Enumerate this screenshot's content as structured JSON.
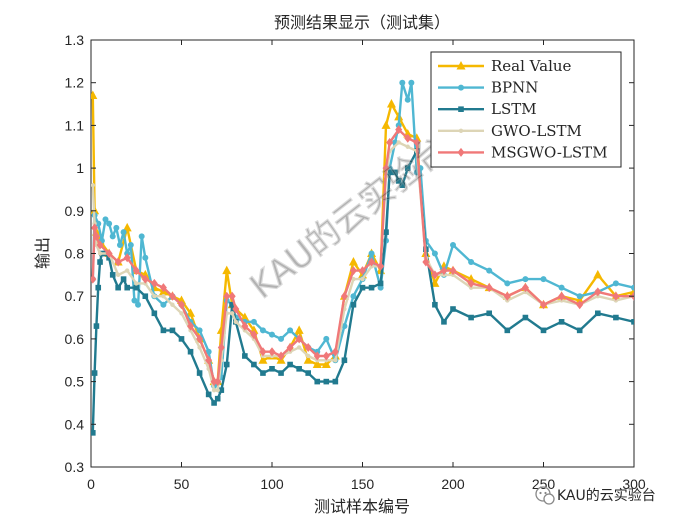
{
  "chart_data": {
    "type": "line",
    "title": "预测结果显示（测试集）",
    "xlabel": "测试样本编号",
    "ylabel": "输出",
    "xlim": [
      0,
      300
    ],
    "ylim": [
      0.3,
      1.3
    ],
    "xticks": [
      0,
      50,
      100,
      150,
      200,
      250,
      300
    ],
    "yticks": [
      0.3,
      0.4,
      0.5,
      0.6,
      0.7,
      0.8,
      0.9,
      1.0,
      1.1,
      1.2,
      1.3
    ],
    "xtick_labels": [
      "0",
      "50",
      "100",
      "150",
      "200",
      "250",
      "300"
    ],
    "ytick_labels": [
      "0.3",
      "0.4",
      "0.5",
      "0.6",
      "0.7",
      "0.8",
      "0.9",
      "1",
      "1.1",
      "1.2",
      "1.3"
    ],
    "grid": false,
    "legend_position": "top-right",
    "series": [
      {
        "name": "Real Value",
        "color": "#f5b800",
        "marker": "triangle",
        "x": [
          1,
          2,
          3,
          5,
          10,
          15,
          20,
          25,
          30,
          35,
          40,
          45,
          50,
          55,
          60,
          65,
          68,
          70,
          72,
          75,
          78,
          80,
          85,
          90,
          95,
          100,
          105,
          110,
          115,
          120,
          125,
          130,
          135,
          140,
          145,
          150,
          155,
          160,
          163,
          166,
          170,
          175,
          180,
          185,
          190,
          195,
          200,
          210,
          220,
          230,
          240,
          250,
          260,
          270,
          280,
          290,
          300
        ],
        "y": [
          1.17,
          0.9,
          0.85,
          0.83,
          0.8,
          0.78,
          0.86,
          0.76,
          0.75,
          0.72,
          0.71,
          0.7,
          0.69,
          0.66,
          0.6,
          0.55,
          0.5,
          0.5,
          0.62,
          0.76,
          0.68,
          0.67,
          0.65,
          0.62,
          0.55,
          0.56,
          0.55,
          0.58,
          0.62,
          0.55,
          0.54,
          0.54,
          0.56,
          0.7,
          0.78,
          0.75,
          0.8,
          0.76,
          1.1,
          1.15,
          1.12,
          1.08,
          1.07,
          0.8,
          0.73,
          0.77,
          0.76,
          0.74,
          0.72,
          0.7,
          0.72,
          0.68,
          0.7,
          0.69,
          0.75,
          0.7,
          0.71
        ]
      },
      {
        "name": "BPNN",
        "color": "#4fb7d2",
        "marker": "circle",
        "x": [
          1,
          2,
          4,
          6,
          8,
          10,
          12,
          14,
          16,
          18,
          20,
          22,
          24,
          26,
          28,
          30,
          35,
          40,
          45,
          50,
          55,
          60,
          65,
          68,
          70,
          72,
          75,
          78,
          80,
          85,
          90,
          95,
          100,
          105,
          110,
          115,
          120,
          125,
          130,
          135,
          140,
          145,
          150,
          155,
          160,
          163,
          165,
          168,
          170,
          172,
          175,
          177,
          180,
          182,
          185,
          190,
          195,
          200,
          210,
          220,
          230,
          240,
          250,
          260,
          270,
          280,
          290,
          300
        ],
        "y": [
          0.74,
          0.89,
          0.87,
          0.83,
          0.88,
          0.87,
          0.84,
          0.86,
          0.82,
          0.85,
          0.8,
          0.82,
          0.69,
          0.68,
          0.84,
          0.79,
          0.7,
          0.68,
          0.7,
          0.68,
          0.64,
          0.62,
          0.57,
          0.49,
          0.5,
          0.51,
          0.69,
          0.68,
          0.65,
          0.64,
          0.64,
          0.62,
          0.61,
          0.6,
          0.62,
          0.6,
          0.58,
          0.57,
          0.6,
          0.55,
          0.63,
          0.7,
          0.74,
          0.8,
          0.72,
          0.83,
          1.0,
          1.06,
          1.1,
          1.2,
          1.16,
          1.2,
          0.99,
          1.0,
          0.83,
          0.8,
          0.75,
          0.82,
          0.78,
          0.76,
          0.73,
          0.74,
          0.74,
          0.72,
          0.7,
          0.71,
          0.73,
          0.72
        ]
      },
      {
        "name": "LSTM",
        "color": "#217a8f",
        "marker": "square",
        "x": [
          1,
          2,
          3,
          4,
          5,
          6,
          8,
          10,
          12,
          15,
          18,
          20,
          25,
          30,
          35,
          40,
          45,
          50,
          55,
          60,
          65,
          68,
          70,
          72,
          75,
          78,
          80,
          85,
          90,
          95,
          100,
          105,
          110,
          115,
          120,
          125,
          130,
          135,
          140,
          145,
          150,
          155,
          160,
          163,
          165,
          168,
          170,
          172,
          175,
          180,
          185,
          190,
          195,
          200,
          210,
          220,
          230,
          240,
          250,
          260,
          270,
          280,
          290,
          300
        ],
        "y": [
          0.38,
          0.52,
          0.63,
          0.72,
          0.78,
          0.8,
          0.8,
          0.79,
          0.75,
          0.72,
          0.74,
          0.72,
          0.72,
          0.7,
          0.66,
          0.62,
          0.62,
          0.6,
          0.57,
          0.52,
          0.47,
          0.45,
          0.46,
          0.48,
          0.54,
          0.68,
          0.64,
          0.56,
          0.54,
          0.52,
          0.53,
          0.52,
          0.54,
          0.53,
          0.52,
          0.5,
          0.5,
          0.5,
          0.55,
          0.68,
          0.72,
          0.72,
          0.73,
          0.85,
          0.99,
          0.99,
          0.97,
          0.96,
          1.0,
          1.04,
          0.81,
          0.68,
          0.64,
          0.67,
          0.65,
          0.66,
          0.62,
          0.65,
          0.62,
          0.64,
          0.62,
          0.66,
          0.65,
          0.64
        ]
      },
      {
        "name": "GWO-LSTM",
        "color": "#ddd5b6",
        "marker": "circle-small",
        "x": [
          1,
          2,
          3,
          5,
          10,
          15,
          20,
          25,
          30,
          35,
          40,
          45,
          50,
          55,
          60,
          65,
          68,
          70,
          72,
          75,
          78,
          80,
          85,
          90,
          95,
          100,
          105,
          110,
          115,
          120,
          125,
          130,
          135,
          140,
          145,
          150,
          155,
          160,
          163,
          165,
          170,
          175,
          180,
          185,
          190,
          195,
          200,
          210,
          220,
          230,
          240,
          250,
          260,
          270,
          280,
          290,
          300
        ],
        "y": [
          0.96,
          0.87,
          0.82,
          0.8,
          0.8,
          0.75,
          0.76,
          0.73,
          0.73,
          0.7,
          0.7,
          0.68,
          0.66,
          0.62,
          0.58,
          0.53,
          0.48,
          0.48,
          0.55,
          0.66,
          0.66,
          0.64,
          0.62,
          0.6,
          0.56,
          0.56,
          0.56,
          0.57,
          0.58,
          0.56,
          0.55,
          0.55,
          0.55,
          0.67,
          0.74,
          0.74,
          0.77,
          0.77,
          0.98,
          1.04,
          1.06,
          1.05,
          1.04,
          0.79,
          0.75,
          0.75,
          0.75,
          0.72,
          0.72,
          0.69,
          0.71,
          0.68,
          0.69,
          0.68,
          0.7,
          0.69,
          0.7
        ]
      },
      {
        "name": "MSGWO-LSTM",
        "color": "#f07878",
        "marker": "diamond",
        "x": [
          1,
          2,
          3,
          5,
          10,
          15,
          20,
          25,
          30,
          35,
          40,
          45,
          50,
          55,
          60,
          65,
          68,
          70,
          72,
          75,
          78,
          80,
          85,
          90,
          95,
          100,
          105,
          110,
          115,
          120,
          125,
          130,
          135,
          140,
          145,
          150,
          155,
          160,
          163,
          165,
          170,
          175,
          180,
          185,
          190,
          195,
          200,
          210,
          220,
          230,
          240,
          250,
          260,
          270,
          280,
          290,
          300
        ],
        "y": [
          0.74,
          0.86,
          0.84,
          0.82,
          0.8,
          0.78,
          0.79,
          0.76,
          0.74,
          0.73,
          0.72,
          0.7,
          0.68,
          0.63,
          0.6,
          0.55,
          0.5,
          0.5,
          0.58,
          0.7,
          0.7,
          0.67,
          0.63,
          0.61,
          0.57,
          0.57,
          0.56,
          0.58,
          0.6,
          0.58,
          0.56,
          0.56,
          0.57,
          0.7,
          0.76,
          0.76,
          0.78,
          0.77,
          1.0,
          1.06,
          1.09,
          1.07,
          1.06,
          0.78,
          0.75,
          0.76,
          0.76,
          0.73,
          0.72,
          0.7,
          0.72,
          0.68,
          0.7,
          0.68,
          0.71,
          0.7,
          0.7
        ]
      }
    ]
  },
  "watermark": {
    "diagonal_text": "KAU的云实验台",
    "corner_text": "KAU的云实验台"
  }
}
